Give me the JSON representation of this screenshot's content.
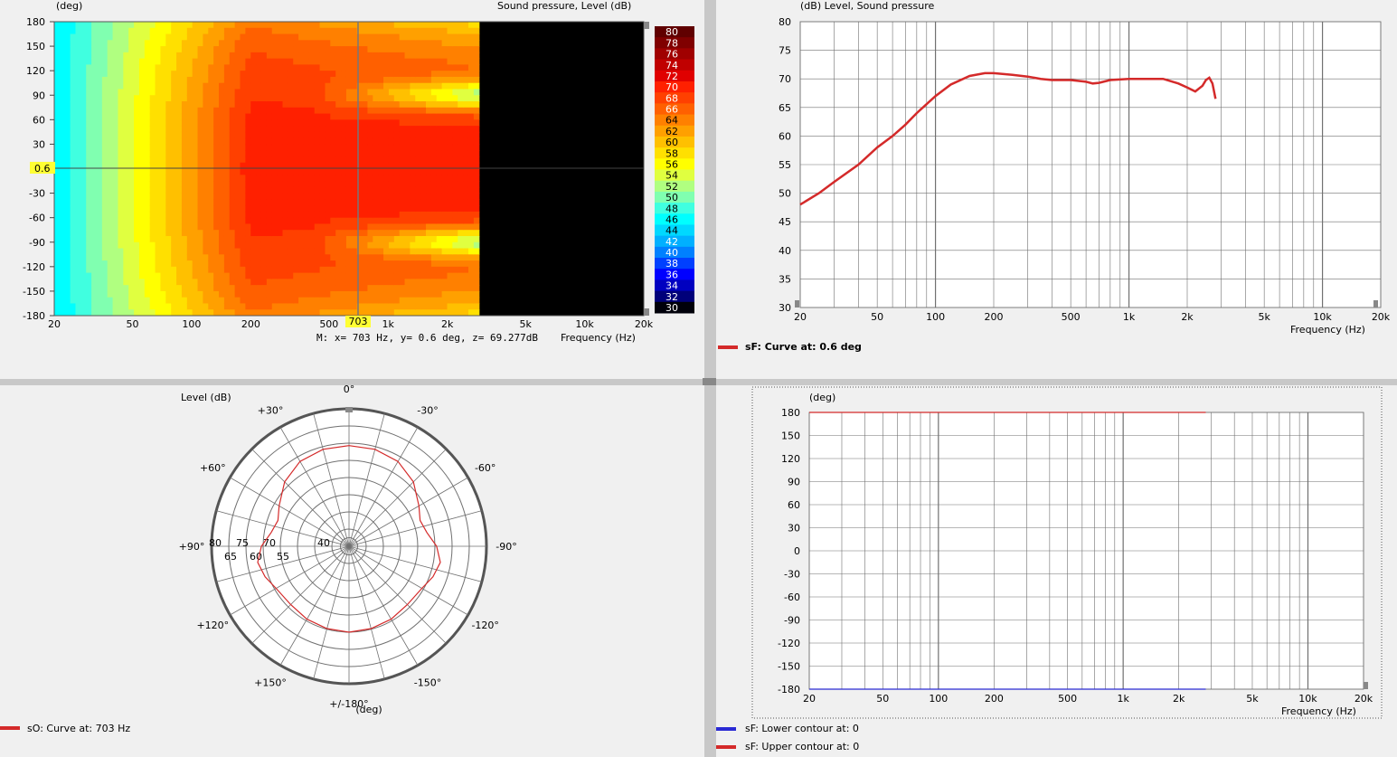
{
  "colors": {
    "red": "#d42a2a",
    "blue": "#2a2ad4",
    "grid": "#707070",
    "bg": "#ffffff",
    "panel": "#f0f0f0",
    "highlight": "#ffff33"
  },
  "contour": {
    "ylabel": "(deg)",
    "zlabel": "Sound pressure, Level  (dB)",
    "xlabel": "Frequency  (Hz)",
    "yticks": [
      "180",
      "150",
      "120",
      "90",
      "60",
      "30",
      "0",
      "-30",
      "-60",
      "-90",
      "-120",
      "-150",
      "-180"
    ],
    "xticks": [
      "20",
      "50",
      "100",
      "200",
      "500",
      "1k",
      "2k",
      "5k",
      "10k",
      "20k"
    ],
    "cursor_x_label": "703",
    "cursor_y_label": "0.6",
    "readout": "M:  x= 703 Hz,  y= 0.6 deg, z= 69.277dB",
    "colorbar": [
      "80",
      "78",
      "76",
      "74",
      "72",
      "70",
      "68",
      "66",
      "64",
      "62",
      "60",
      "58",
      "56",
      "54",
      "52",
      "50",
      "48",
      "46",
      "44",
      "42",
      "40",
      "38",
      "36",
      "34",
      "32",
      "30"
    ]
  },
  "spl": {
    "ylabel": "(dB)  Level, Sound pressure",
    "xlabel": "Frequency  (Hz)",
    "yticks": [
      "80",
      "75",
      "70",
      "65",
      "60",
      "55",
      "50",
      "45",
      "40",
      "35",
      "30"
    ],
    "xticks": [
      "20",
      "50",
      "100",
      "200",
      "500",
      "1k",
      "2k",
      "5k",
      "10k",
      "20k"
    ],
    "legend": "sF: Curve at: 0.6 deg"
  },
  "polar": {
    "title": "Level  (dB)",
    "angle_labels": [
      "0°",
      "-30°",
      "-60°",
      "-90°",
      "-120°",
      "-150°",
      "+/-180°",
      "+150°",
      "+120°",
      "+90°",
      "+60°",
      "+30°"
    ],
    "ring_labels": [
      "80",
      "75",
      "70",
      "65",
      "60",
      "55",
      "40"
    ],
    "unit": "(deg)",
    "legend": "sO: Curve at: 703 Hz"
  },
  "phase": {
    "ylabel": "(deg)",
    "xlabel": "Frequency  (Hz)",
    "yticks": [
      "180",
      "150",
      "120",
      "90",
      "60",
      "30",
      "0",
      "-30",
      "-60",
      "-90",
      "-120",
      "-150",
      "-180"
    ],
    "xticks": [
      "20",
      "50",
      "100",
      "200",
      "500",
      "1k",
      "2k",
      "5k",
      "10k",
      "20k"
    ],
    "legend_lower": "sF: Lower contour at: 0",
    "legend_upper": "sF: Upper contour at: 0"
  },
  "chart_data": [
    {
      "type": "heatmap",
      "title": "Sound pressure, Level  (dB)",
      "xlabel": "Frequency  (Hz)",
      "ylabel": "(deg)",
      "xscale": "log",
      "xlim": [
        20,
        20000
      ],
      "ylim": [
        -180,
        180
      ],
      "zlim": [
        30,
        80
      ],
      "cursor": {
        "x": 703,
        "y": 0.6,
        "z": 69.277
      },
      "note_data_region": "data up to ~2.9 kHz, above is black"
    },
    {
      "type": "line",
      "xlabel": "Frequency  (Hz)",
      "ylabel": "(dB)  Level, Sound pressure",
      "xscale": "log",
      "xlim": [
        20,
        20000
      ],
      "ylim": [
        30,
        80
      ],
      "series": [
        {
          "name": "sF: Curve at: 0.6 deg",
          "x": [
            20,
            25,
            30,
            40,
            50,
            60,
            70,
            80,
            100,
            120,
            150,
            180,
            200,
            250,
            300,
            350,
            400,
            500,
            600,
            650,
            700,
            800,
            1000,
            1200,
            1500,
            1800,
            2000,
            2200,
            2400,
            2500,
            2600,
            2700,
            2800
          ],
          "y": [
            48,
            50,
            52,
            55,
            58,
            60,
            62,
            64,
            67,
            69,
            70.5,
            71,
            71,
            70.7,
            70.4,
            70,
            69.8,
            69.8,
            69.5,
            69.2,
            69.3,
            69.8,
            70,
            70,
            70,
            69.2,
            68.5,
            67.8,
            68.8,
            69.8,
            70.2,
            69.2,
            66.5
          ]
        }
      ]
    },
    {
      "type": "line",
      "subtype": "polar",
      "title": "Level  (dB)",
      "rlim": [
        40,
        80
      ],
      "freq": "703 Hz",
      "series": [
        {
          "name": "sO: Curve at: 703 Hz",
          "theta": [
            0,
            15,
            30,
            45,
            60,
            70,
            80,
            90,
            100,
            110,
            120,
            135,
            150,
            165,
            180,
            195,
            210,
            225,
            240,
            250,
            260,
            270,
            280,
            290,
            300,
            315,
            330,
            345
          ],
          "r": [
            69.3,
            69.2,
            68.5,
            66.5,
            63.5,
            62,
            63,
            65.5,
            67,
            66,
            64.5,
            64,
            64.5,
            64.8,
            65,
            64.8,
            64.5,
            64,
            64.5,
            66,
            67,
            65.5,
            63,
            62,
            63.5,
            66.5,
            68.5,
            69.2
          ]
        }
      ]
    },
    {
      "type": "line",
      "xlabel": "Frequency  (Hz)",
      "ylabel": "(deg)",
      "xscale": "log",
      "xlim": [
        20,
        20000
      ],
      "ylim": [
        -180,
        180
      ],
      "series": [
        {
          "name": "sF: Upper contour at: 0",
          "x": [
            20,
            2800
          ],
          "y": [
            180,
            180
          ]
        },
        {
          "name": "sF: Lower contour at: 0",
          "x": [
            20,
            2800
          ],
          "y": [
            -180,
            -180
          ]
        }
      ]
    }
  ]
}
